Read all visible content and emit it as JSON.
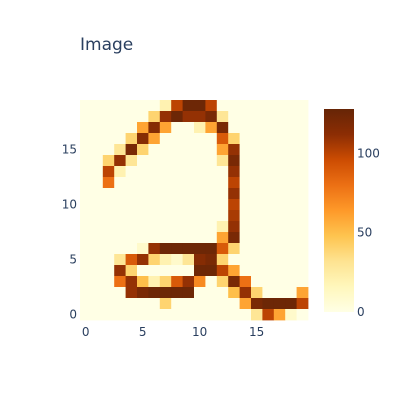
{
  "chart_data": {
    "type": "heatmap",
    "title": "Image",
    "x_ticks": [
      "0",
      "5",
      "10",
      "15"
    ],
    "y_ticks": [
      "0",
      "5",
      "10",
      "15"
    ],
    "colorbar_ticks": [
      "0",
      "50",
      "100"
    ],
    "z_range": [
      0,
      128
    ],
    "grid": false,
    "colorscale": [
      "#ffffe5",
      "#fff7bc",
      "#fee391",
      "#fec44f",
      "#fe9929",
      "#ec7014",
      "#cc4c02",
      "#8c2d04",
      "#662506"
    ],
    "origin": "lower",
    "rows_top_to_bottom": [
      [
        0,
        0,
        0,
        0,
        0,
        0,
        0,
        20,
        100,
        125,
        125,
        100,
        0,
        0,
        0,
        0,
        0,
        0,
        0,
        0
      ],
      [
        0,
        0,
        0,
        0,
        0,
        0,
        40,
        110,
        125,
        110,
        110,
        120,
        30,
        0,
        0,
        0,
        0,
        0,
        0,
        0
      ],
      [
        0,
        0,
        0,
        0,
        0,
        60,
        115,
        60,
        0,
        0,
        20,
        60,
        120,
        0,
        0,
        0,
        0,
        0,
        0,
        0
      ],
      [
        0,
        0,
        0,
        0,
        40,
        115,
        60,
        0,
        0,
        0,
        0,
        0,
        90,
        40,
        0,
        0,
        0,
        0,
        0,
        0
      ],
      [
        0,
        0,
        0,
        30,
        120,
        40,
        0,
        0,
        0,
        0,
        0,
        0,
        60,
        110,
        0,
        0,
        0,
        0,
        0,
        0
      ],
      [
        0,
        0,
        40,
        110,
        30,
        0,
        0,
        0,
        0,
        0,
        0,
        0,
        30,
        120,
        0,
        0,
        0,
        0,
        0,
        0
      ],
      [
        0,
        0,
        100,
        20,
        0,
        0,
        0,
        0,
        0,
        0,
        0,
        0,
        0,
        110,
        0,
        0,
        0,
        0,
        0,
        0
      ],
      [
        0,
        0,
        80,
        0,
        0,
        0,
        0,
        0,
        0,
        0,
        0,
        0,
        0,
        100,
        0,
        0,
        0,
        0,
        0,
        0
      ],
      [
        0,
        0,
        0,
        0,
        0,
        0,
        0,
        0,
        0,
        0,
        0,
        0,
        0,
        110,
        0,
        0,
        0,
        0,
        0,
        0
      ],
      [
        0,
        0,
        0,
        0,
        0,
        0,
        0,
        0,
        0,
        0,
        0,
        0,
        0,
        100,
        0,
        0,
        0,
        0,
        0,
        0
      ],
      [
        0,
        0,
        0,
        0,
        0,
        0,
        0,
        0,
        0,
        0,
        0,
        0,
        0,
        105,
        0,
        0,
        0,
        0,
        0,
        0
      ],
      [
        0,
        0,
        0,
        0,
        0,
        0,
        0,
        0,
        0,
        0,
        0,
        0,
        20,
        110,
        0,
        0,
        0,
        0,
        0,
        0
      ],
      [
        0,
        0,
        0,
        0,
        0,
        0,
        0,
        0,
        0,
        0,
        0,
        0,
        60,
        120,
        0,
        0,
        0,
        0,
        0,
        0
      ],
      [
        0,
        0,
        0,
        0,
        0,
        10,
        110,
        125,
        125,
        125,
        125,
        125,
        90,
        40,
        0,
        0,
        0,
        0,
        0,
        0
      ],
      [
        0,
        0,
        0,
        30,
        90,
        110,
        40,
        20,
        10,
        30,
        115,
        120,
        40,
        0,
        0,
        0,
        0,
        0,
        0,
        0
      ],
      [
        0,
        0,
        0,
        110,
        40,
        0,
        0,
        0,
        0,
        0,
        125,
        125,
        100,
        60,
        0,
        0,
        0,
        0,
        0,
        0
      ],
      [
        0,
        0,
        0,
        80,
        110,
        50,
        20,
        40,
        90,
        110,
        70,
        0,
        40,
        120,
        80,
        0,
        0,
        0,
        0,
        0
      ],
      [
        0,
        0,
        0,
        0,
        110,
        120,
        125,
        125,
        125,
        125,
        0,
        0,
        0,
        50,
        110,
        40,
        0,
        0,
        0,
        60
      ],
      [
        0,
        0,
        0,
        0,
        0,
        0,
        0,
        40,
        0,
        0,
        0,
        0,
        0,
        0,
        60,
        120,
        125,
        125,
        125,
        100
      ],
      [
        0,
        0,
        0,
        0,
        0,
        0,
        0,
        0,
        0,
        0,
        0,
        0,
        0,
        0,
        0,
        30,
        100,
        60,
        10,
        0
      ]
    ]
  }
}
